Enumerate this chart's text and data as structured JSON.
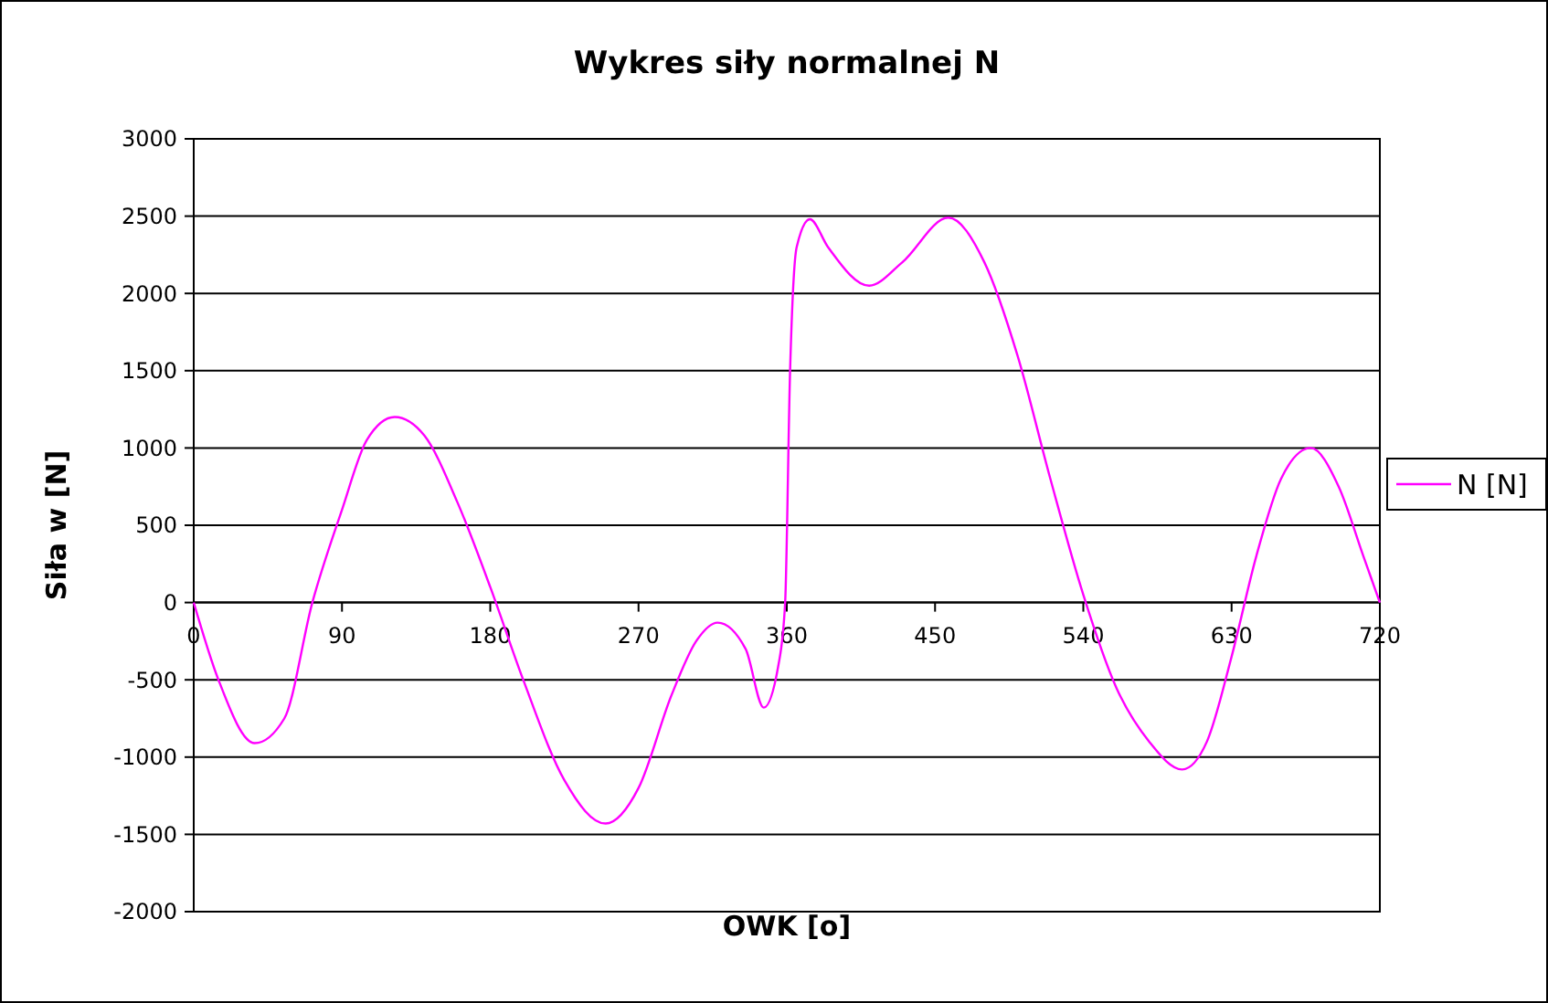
{
  "chart_data": {
    "type": "line",
    "title": "Wykres siły normalnej N",
    "xlabel": "OWK [o]",
    "ylabel": "Siła w [N]",
    "xlim": [
      0,
      720
    ],
    "xticks": [
      0,
      90,
      180,
      270,
      360,
      450,
      540,
      630,
      720
    ],
    "ylim": [
      -2000,
      3000
    ],
    "yticks": [
      -2000,
      -1500,
      -1000,
      -500,
      0,
      500,
      1000,
      1500,
      2000,
      2500,
      3000
    ],
    "grid": "y",
    "legend": "right",
    "marker": "none",
    "line_style": "solid",
    "x": [
      0,
      15,
      37,
      55,
      72,
      90,
      105,
      122,
      140,
      160,
      180,
      200,
      225,
      250,
      270,
      290,
      305,
      318,
      335,
      346,
      355,
      359,
      362,
      366,
      374,
      385,
      410,
      430,
      458,
      480,
      500,
      520,
      540,
      560,
      580,
      600,
      615,
      630,
      645,
      660,
      678,
      695,
      710,
      720
    ],
    "series": [
      {
        "name": "N [N]",
        "color": "#ff00ff",
        "values": [
          0,
          -500,
          -910,
          -750,
          0,
          600,
          1050,
          1200,
          1080,
          650,
          100,
          -500,
          -1150,
          -1430,
          -1200,
          -600,
          -250,
          -130,
          -300,
          -680,
          -400,
          0,
          1500,
          2300,
          2480,
          2300,
          2050,
          2200,
          2490,
          2200,
          1600,
          800,
          50,
          -550,
          -900,
          -1080,
          -900,
          -350,
          300,
          800,
          1000,
          750,
          300,
          0
        ]
      }
    ]
  }
}
